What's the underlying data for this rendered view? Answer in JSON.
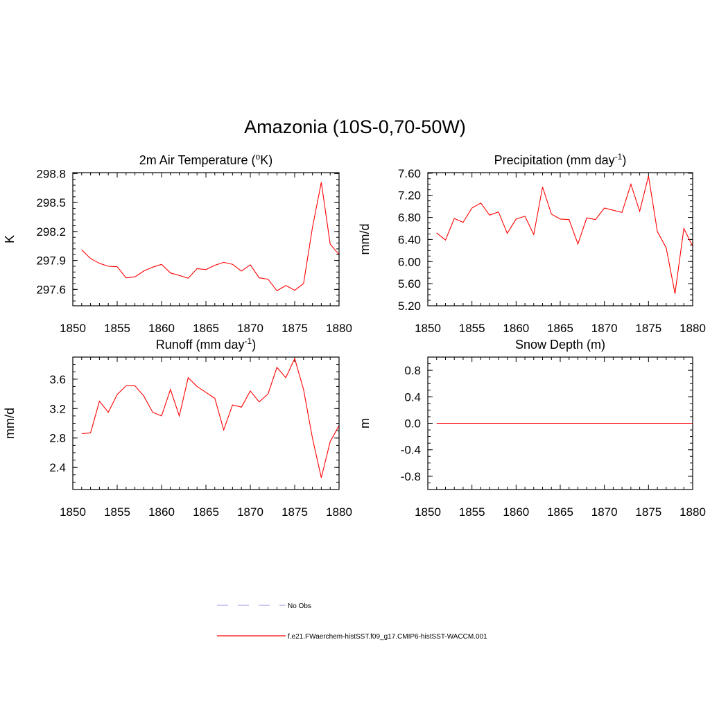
{
  "title": "Amazonia (10S-0,70-50W)",
  "legend": [
    {
      "label": "No Obs",
      "color": "#aaaaee",
      "style": "dashed"
    },
    {
      "label": "f.e21.FWaerchem-histSST.f09_g17.CMIP6-histSST-WACCM.001",
      "color": "#ff0000",
      "style": "solid"
    }
  ],
  "chart_data": [
    {
      "type": "line",
      "title": "2m Air Temperature (°K)",
      "title_parts": {
        "pre": "2m Air Temperature (",
        "sup": "o",
        "post": "K)"
      },
      "ylabel": "K",
      "xlim": [
        1850,
        1880
      ],
      "ylim": [
        297.43,
        298.81
      ],
      "xticks": [
        1850,
        1855,
        1860,
        1865,
        1870,
        1875,
        1880
      ],
      "yticks": [
        297.6,
        297.9,
        298.2,
        298.5,
        298.8
      ],
      "ytick_labels": [
        "297.6",
        "297.9",
        "298.2",
        "298.5",
        "298.8"
      ],
      "yminor": 0.06,
      "x": [
        1851,
        1852,
        1853,
        1854,
        1855,
        1856,
        1857,
        1858,
        1859,
        1860,
        1861,
        1862,
        1863,
        1864,
        1865,
        1866,
        1867,
        1868,
        1869,
        1870,
        1871,
        1872,
        1873,
        1874,
        1875,
        1876,
        1877,
        1878,
        1879,
        1880
      ],
      "series": [
        {
          "color": "#ff0000",
          "values": [
            298.01,
            297.92,
            297.87,
            297.84,
            297.835,
            297.72,
            297.73,
            297.79,
            297.83,
            297.86,
            297.77,
            297.745,
            297.715,
            297.815,
            297.805,
            297.85,
            297.88,
            297.86,
            297.79,
            297.855,
            297.72,
            297.705,
            297.585,
            297.64,
            297.59,
            297.66,
            298.24,
            298.71,
            298.07,
            297.96
          ]
        }
      ]
    },
    {
      "type": "line",
      "title": "Precipitation (mm day-1)",
      "title_parts": {
        "pre": "Precipitation (mm day",
        "sup": "-1",
        "post": ")"
      },
      "ylabel": "mm/d",
      "xlim": [
        1850,
        1880
      ],
      "ylim": [
        5.2,
        7.61
      ],
      "xticks": [
        1850,
        1855,
        1860,
        1865,
        1870,
        1875,
        1880
      ],
      "yticks": [
        5.2,
        5.6,
        6.0,
        6.4,
        6.8,
        7.2,
        7.6
      ],
      "ytick_labels": [
        "5.20",
        "5.60",
        "6.00",
        "6.40",
        "6.80",
        "7.20",
        "7.60"
      ],
      "yminor": 0.1,
      "x": [
        1851,
        1852,
        1853,
        1854,
        1855,
        1856,
        1857,
        1858,
        1859,
        1860,
        1861,
        1862,
        1863,
        1864,
        1865,
        1866,
        1867,
        1868,
        1869,
        1870,
        1871,
        1872,
        1873,
        1874,
        1875,
        1876,
        1877,
        1878,
        1879,
        1880
      ],
      "series": [
        {
          "color": "#ff0000",
          "values": [
            6.52,
            6.39,
            6.78,
            6.71,
            6.97,
            7.06,
            6.84,
            6.9,
            6.51,
            6.77,
            6.82,
            6.49,
            7.35,
            6.86,
            6.77,
            6.76,
            6.32,
            6.79,
            6.76,
            6.97,
            6.93,
            6.89,
            7.4,
            6.91,
            7.55,
            6.54,
            6.25,
            5.42,
            6.6,
            6.28
          ]
        }
      ]
    },
    {
      "type": "line",
      "title": "Runoff (mm day-1)",
      "title_parts": {
        "pre": "Runoff (mm day",
        "sup": "-1",
        "post": ")"
      },
      "ylabel": "mm/d",
      "xlim": [
        1850,
        1880
      ],
      "ylim": [
        2.1,
        3.9
      ],
      "xticks": [
        1850,
        1855,
        1860,
        1865,
        1870,
        1875,
        1880
      ],
      "yticks": [
        2.4,
        2.8,
        3.2,
        3.6
      ],
      "ytick_labels": [
        "2.4",
        "2.8",
        "3.2",
        "3.6"
      ],
      "yminor": 0.1,
      "x": [
        1851,
        1852,
        1853,
        1854,
        1855,
        1856,
        1857,
        1858,
        1859,
        1860,
        1861,
        1862,
        1863,
        1864,
        1865,
        1866,
        1867,
        1868,
        1869,
        1870,
        1871,
        1872,
        1873,
        1874,
        1875,
        1876,
        1877,
        1878,
        1879,
        1880
      ],
      "series": [
        {
          "color": "#ff0000",
          "values": [
            2.86,
            2.87,
            3.3,
            3.15,
            3.39,
            3.51,
            3.51,
            3.37,
            3.15,
            3.1,
            3.46,
            3.1,
            3.62,
            3.5,
            3.42,
            3.34,
            2.91,
            3.25,
            3.22,
            3.44,
            3.29,
            3.4,
            3.76,
            3.62,
            3.88,
            3.46,
            2.8,
            2.26,
            2.75,
            2.97
          ]
        }
      ]
    },
    {
      "type": "line",
      "title": "Snow Depth (m)",
      "title_parts": {
        "pre": "Snow Depth (m)",
        "sup": "",
        "post": ""
      },
      "ylabel": "m",
      "xlim": [
        1850,
        1880
      ],
      "ylim": [
        -1.0,
        1.0
      ],
      "xticks": [
        1850,
        1855,
        1860,
        1865,
        1870,
        1875,
        1880
      ],
      "yticks": [
        -0.8,
        -0.4,
        0.0,
        0.4,
        0.8
      ],
      "ytick_labels": [
        "-0.8",
        "-0.4",
        "0.0",
        "0.4",
        "0.8"
      ],
      "yminor": 0.1,
      "x": [
        1851,
        1852,
        1853,
        1854,
        1855,
        1856,
        1857,
        1858,
        1859,
        1860,
        1861,
        1862,
        1863,
        1864,
        1865,
        1866,
        1867,
        1868,
        1869,
        1870,
        1871,
        1872,
        1873,
        1874,
        1875,
        1876,
        1877,
        1878,
        1879,
        1880
      ],
      "series": [
        {
          "color": "#ff0000",
          "values": [
            0,
            0,
            0,
            0,
            0,
            0,
            0,
            0,
            0,
            0,
            0,
            0,
            0,
            0,
            0,
            0,
            0,
            0,
            0,
            0,
            0,
            0,
            0,
            0,
            0,
            0,
            0,
            0,
            0,
            0
          ]
        }
      ]
    }
  ]
}
